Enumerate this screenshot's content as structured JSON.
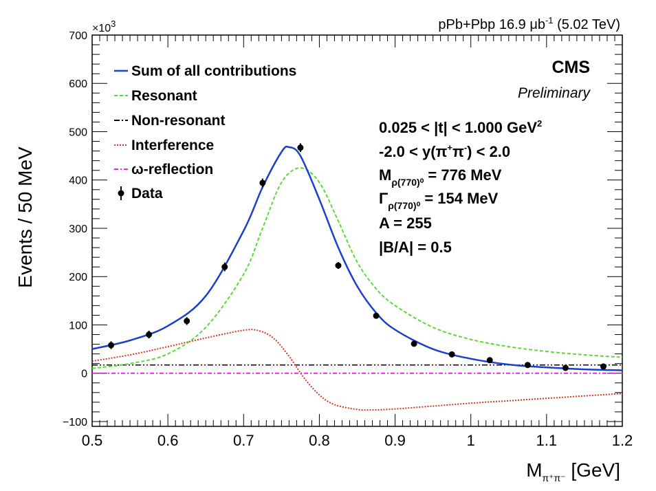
{
  "chart_data": {
    "type": "line",
    "experiment": "CMS",
    "status": "Preliminary",
    "lumi_label": {
      "prefix": "pPb+Pbp 16.9 ",
      "unit": "μb",
      "unit_sup": "-1",
      "suffix": " (5.02 TeV)"
    },
    "ylabel": "Events / 50 MeV",
    "y_multiplier": "×10",
    "y_multiplier_exp": "3",
    "xlabel": {
      "main": "M",
      "sub": "π⁺π⁻",
      "unit": " [GeV]"
    },
    "xlim": [
      0.5,
      1.2
    ],
    "ylim": [
      -110,
      700
    ],
    "x_ticks": [
      "0.5",
      "0.6",
      "0.7",
      "0.8",
      "0.9",
      "1",
      "1.1",
      "1.2"
    ],
    "x_tick_values": [
      0.5,
      0.6,
      0.7,
      0.8,
      0.9,
      1.0,
      1.1,
      1.2
    ],
    "y_ticks": [
      "−100",
      "0",
      "100",
      "200",
      "300",
      "400",
      "500",
      "600",
      "700"
    ],
    "y_tick_values": [
      -100,
      0,
      100,
      200,
      300,
      400,
      500,
      600,
      700
    ],
    "legend": [
      {
        "label": "Sum of all contributions",
        "color": "#1a3fcf",
        "style": "solid"
      },
      {
        "label": "Resonant",
        "color": "#55dd33",
        "style": "dashed"
      },
      {
        "label": "Non-resonant",
        "color": "#000000",
        "style": "dashdot"
      },
      {
        "label": "Interference",
        "color": "#dd3322",
        "style": "dotted"
      },
      {
        "label": "ω-reflection",
        "color": "#ee22ee",
        "style": "dashdot"
      },
      {
        "label": "Data",
        "color": "#000000",
        "style": "marker"
      }
    ],
    "fit_info": [
      {
        "main": "0.025 < |t| < 1.000 GeV",
        "sup": "2",
        "tail": ""
      },
      {
        "main": "-2.0 < y(π",
        "sup": "+",
        "mid": "π",
        "sup2": "-",
        "tail": ") < 2.0"
      },
      {
        "main": "M",
        "sub": "ρ(770)⁰",
        "tail": " = 776 MeV"
      },
      {
        "main": "Γ",
        "sub": "ρ(770)⁰",
        "tail": " = 154 MeV"
      },
      {
        "main": "A = 255"
      },
      {
        "main": "|B/A| = 0.5"
      }
    ],
    "data_points": [
      {
        "x": 0.525,
        "y": 58,
        "err": 8
      },
      {
        "x": 0.575,
        "y": 80,
        "err": 8
      },
      {
        "x": 0.625,
        "y": 108,
        "err": 8
      },
      {
        "x": 0.675,
        "y": 220,
        "err": 9
      },
      {
        "x": 0.725,
        "y": 394,
        "err": 9
      },
      {
        "x": 0.775,
        "y": 467,
        "err": 9
      },
      {
        "x": 0.825,
        "y": 223,
        "err": 7
      },
      {
        "x": 0.875,
        "y": 119,
        "err": 5
      },
      {
        "x": 0.925,
        "y": 61,
        "err": 4
      },
      {
        "x": 0.975,
        "y": 39,
        "err": 3
      },
      {
        "x": 1.025,
        "y": 27,
        "err": 3
      },
      {
        "x": 1.075,
        "y": 17,
        "err": 3
      },
      {
        "x": 1.125,
        "y": 11,
        "err": 3
      },
      {
        "x": 1.175,
        "y": 14,
        "err": 3
      }
    ],
    "curves": {
      "sum": {
        "x": [
          0.5,
          0.55,
          0.6,
          0.65,
          0.7,
          0.725,
          0.75,
          0.76,
          0.775,
          0.8,
          0.825,
          0.85,
          0.875,
          0.9,
          0.95,
          1.0,
          1.05,
          1.1,
          1.15,
          1.2
        ],
        "y": [
          50,
          68,
          98,
          160,
          295,
          385,
          458,
          468,
          450,
          360,
          260,
          180,
          125,
          90,
          50,
          30,
          18,
          12,
          8,
          6
        ]
      },
      "resonant": {
        "x": [
          0.5,
          0.55,
          0.6,
          0.65,
          0.7,
          0.725,
          0.75,
          0.775,
          0.8,
          0.825,
          0.85,
          0.875,
          0.9,
          0.95,
          1.0,
          1.05,
          1.1,
          1.15,
          1.2
        ],
        "y": [
          10,
          20,
          40,
          95,
          205,
          300,
          395,
          425,
          395,
          315,
          230,
          175,
          140,
          95,
          70,
          55,
          45,
          38,
          33
        ]
      },
      "nonresonant": {
        "x": [
          0.5,
          1.2
        ],
        "y": [
          17,
          17
        ]
      },
      "interference": {
        "x": [
          0.5,
          0.55,
          0.6,
          0.65,
          0.7,
          0.72,
          0.74,
          0.76,
          0.78,
          0.8,
          0.82,
          0.85,
          0.87,
          0.9,
          0.95,
          1.0,
          1.05,
          1.1,
          1.15,
          1.2
        ],
        "y": [
          25,
          38,
          55,
          73,
          89,
          88,
          72,
          35,
          -10,
          -45,
          -65,
          -75,
          -76,
          -74,
          -68,
          -62,
          -57,
          -52,
          -47,
          -42
        ]
      },
      "omega_reflection": {
        "x": [
          0.5,
          1.2
        ],
        "y": [
          0,
          0
        ]
      }
    }
  }
}
